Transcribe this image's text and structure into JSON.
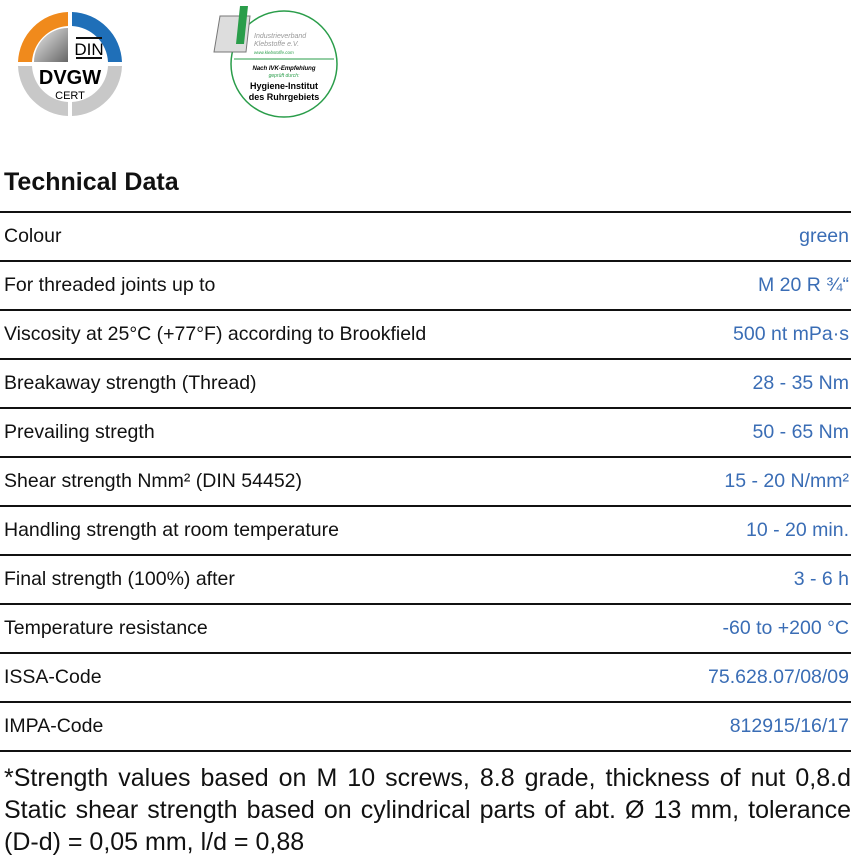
{
  "logos": {
    "dvgw": {
      "line1": "DIN",
      "line2": "DVGW",
      "line3": "CERT",
      "colors": {
        "orange": "#f08a1c",
        "blue": "#1f6fb8",
        "grey": "#c8c8c8"
      }
    },
    "ivk": {
      "org1": "Industrieverband",
      "org2": "Klebstoffe e.V.",
      "url": "www.klebstoffe.com",
      "rec": "Nach IVK-Empfehlung",
      "checked": "geprüft durch:",
      "inst1": "Hygiene-Institut",
      "inst2": "des Ruhrgebiets",
      "color": "#2a9d4a"
    }
  },
  "title": "Technical Data",
  "rows": [
    {
      "label": "Colour",
      "value": "green"
    },
    {
      "label": "For threaded joints up to",
      "value": "M 20 R ¾“"
    },
    {
      "label": "Viscosity  at 25°C (+77°F) according to Brookfield",
      "value": "500 nt mPa·s"
    },
    {
      "label": "Breakaway strength (Thread)",
      "value": "28 - 35 Nm"
    },
    {
      "label": "Prevailing stregth",
      "value": "50 - 65 Nm"
    },
    {
      "label": "Shear strength Nmm² (DIN 54452)",
      "value": "15 - 20 N/mm²"
    },
    {
      "label": "Handling strength at room temperature",
      "value": "10 - 20 min."
    },
    {
      "label": "Final strength (100%) after",
      "value": "3 - 6 h"
    },
    {
      "label": "Temperature resistance",
      "value": "-60 to +200 °C"
    },
    {
      "label": "ISSA-Code",
      "value": "75.628.07/08/09"
    },
    {
      "label": "IMPA-Code",
      "value": "812915/16/17"
    }
  ],
  "note": "*Strength values based on M 10 screws, 8.8 grade, thickness of nut 0,8.d Static shear strength based on cylindrical parts of abt. Ø 13 mm, tolerance (D-d) = 0,05 mm, l/d = 0,88",
  "value_color": "#3a6db5"
}
